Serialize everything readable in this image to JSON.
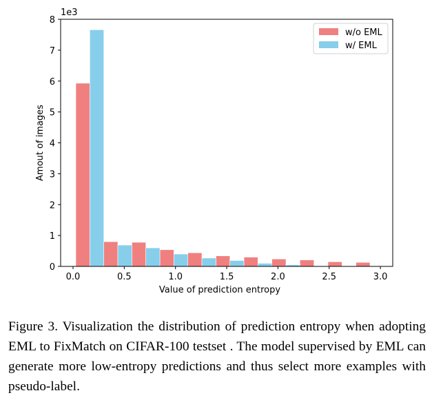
{
  "chart_data": {
    "type": "bar",
    "title": "",
    "xlabel": "Value of prediction entropy",
    "ylabel": "Amout of images",
    "y_offset_label": "1e3",
    "xlim": [
      -0.12,
      3.12
    ],
    "ylim": [
      0,
      8
    ],
    "xticks": [
      0.0,
      0.5,
      1.0,
      1.5,
      2.0,
      2.5,
      3.0
    ],
    "xtick_labels": [
      "0.0",
      "0.5",
      "1.0",
      "1.5",
      "2.0",
      "2.5",
      "3.0"
    ],
    "yticks": [
      0,
      1,
      2,
      3,
      4,
      5,
      6,
      7,
      8
    ],
    "ytick_labels": [
      "0",
      "1",
      "2",
      "3",
      "4",
      "5",
      "6",
      "7",
      "8"
    ],
    "grid": false,
    "legend_position": "top-right",
    "bin_start": 0.027,
    "bin_width": 0.2735,
    "bins": [
      "0.03-0.30",
      "0.30-0.57",
      "0.57-0.85",
      "0.85-1.12",
      "1.12-1.39",
      "1.39-1.67",
      "1.67-1.94",
      "1.94-2.21",
      "2.21-2.49",
      "2.49-2.76",
      "2.76-3.03"
    ],
    "series": [
      {
        "name": "w/o EML",
        "color": "#f08080",
        "values": [
          5.93,
          0.8,
          0.78,
          0.54,
          0.44,
          0.34,
          0.3,
          0.24,
          0.21,
          0.15,
          0.13
        ]
      },
      {
        "name": "w/ EML",
        "color": "#87ceeb",
        "values": [
          7.66,
          0.69,
          0.6,
          0.4,
          0.27,
          0.19,
          0.1,
          0.05,
          0.01,
          0.005,
          0.0
        ]
      }
    ],
    "unit_multiplier": 1000
  },
  "caption": "Figure 3. Visualization the distribution of prediction entropy when adopting EML to FixMatch on CIFAR-100 testset . The model supervised by EML can generate more low-entropy predictions and thus select more examples with pseudo-label."
}
